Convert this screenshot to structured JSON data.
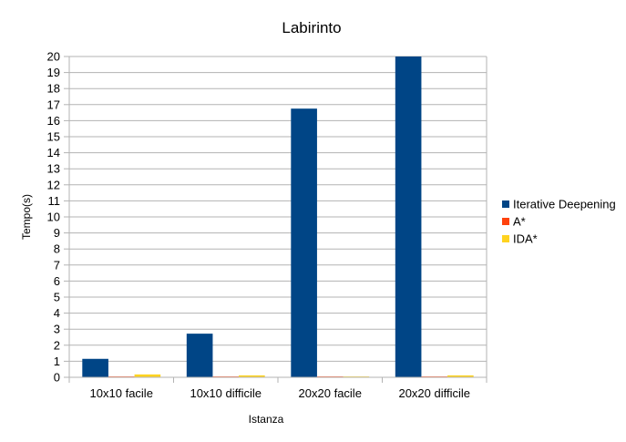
{
  "chart_data": {
    "type": "bar",
    "title": "Labirinto",
    "xlabel": "Istanza",
    "ylabel": "Tempo(s)",
    "categories": [
      "10x10 facile",
      "10x10 difficile",
      "20x20 facile",
      "20x20 difficile"
    ],
    "series": [
      {
        "name": "Iterative Deepening",
        "color": "#004586",
        "values": [
          1.15,
          2.72,
          16.75,
          20.0
        ]
      },
      {
        "name": "A*",
        "color": "#ff420e",
        "values": [
          0.05,
          0.05,
          0.05,
          0.05
        ]
      },
      {
        "name": "IDA*",
        "color": "#ffd320",
        "values": [
          0.18,
          0.12,
          0.05,
          0.12
        ]
      }
    ],
    "ylim": [
      0,
      20
    ],
    "yticks": [
      0,
      1,
      2,
      3,
      4,
      5,
      6,
      7,
      8,
      9,
      10,
      11,
      12,
      13,
      14,
      15,
      16,
      17,
      18,
      19,
      20
    ],
    "grid": true,
    "legend": "right"
  }
}
